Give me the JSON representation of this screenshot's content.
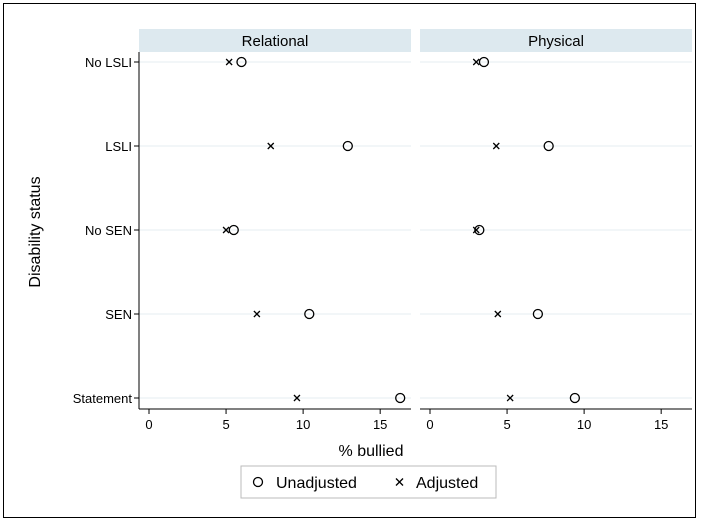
{
  "chart_data": {
    "type": "scatter",
    "xlabel": "% bullied",
    "ylabel": "Disability status",
    "xlim": [
      0,
      17
    ],
    "xticks": [
      0,
      5,
      10,
      15
    ],
    "categories": [
      "No LSLI",
      "LSLI",
      "No SEN",
      "SEN",
      "Statement"
    ],
    "panels": [
      {
        "title": "Relational",
        "series": [
          {
            "name": "Unadjusted",
            "values": [
              6.0,
              12.9,
              5.5,
              10.4,
              16.3
            ]
          },
          {
            "name": "Adjusted",
            "values": [
              5.2,
              7.9,
              5.0,
              7.0,
              9.6
            ]
          }
        ]
      },
      {
        "title": "Physical",
        "series": [
          {
            "name": "Unadjusted",
            "values": [
              3.5,
              7.7,
              3.2,
              7.0,
              9.4
            ]
          },
          {
            "name": "Adjusted",
            "values": [
              3.0,
              4.3,
              3.0,
              4.4,
              5.2
            ]
          }
        ]
      }
    ],
    "grid": true,
    "legend": "bottom"
  },
  "colors": {
    "strip_background": "#dde9ef",
    "gridline": "#e6eef2",
    "marker": "#000000"
  }
}
